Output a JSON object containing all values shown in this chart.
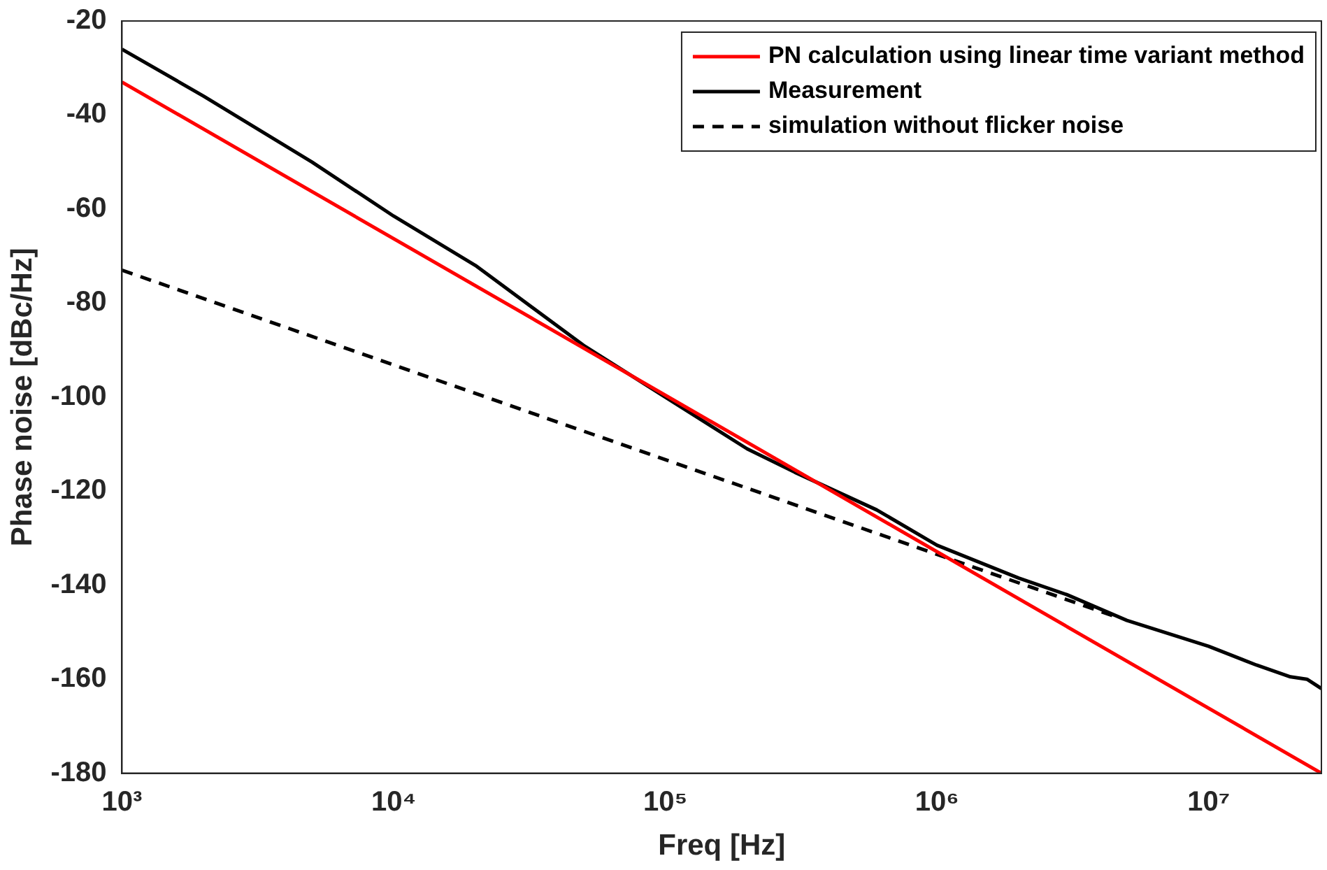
{
  "chart_data": {
    "type": "line",
    "xlabel": "Freq [Hz]",
    "ylabel": "Phase noise [dBc/Hz]",
    "log": "x",
    "xlim": [
      1000,
      26000000
    ],
    "xticks": [
      {
        "value": 1000,
        "label": "10³"
      },
      {
        "value": 10000,
        "label": "10⁴"
      },
      {
        "value": 100000,
        "label": "10⁵"
      },
      {
        "value": 1000000,
        "label": "10⁶"
      },
      {
        "value": 10000000,
        "label": "10⁷"
      }
    ],
    "ylim": [
      -180,
      -20
    ],
    "yticks": [
      -180,
      -160,
      -140,
      -120,
      -100,
      -80,
      -60,
      -40,
      -20
    ],
    "grid": false,
    "legend": "top right",
    "line_style": "solid",
    "marker": "none",
    "series": [
      {
        "name": "PN calculation using linear time variant method",
        "color": "#ff0000",
        "x": [
          1000,
          26000000
        ],
        "values": [
          -33,
          -180
        ]
      },
      {
        "name": "Measurement",
        "color": "#000000",
        "x": [
          1000,
          2000,
          5000,
          10000,
          20000,
          50000,
          100000,
          200000,
          300000,
          600000,
          1000000,
          2000000,
          3000000,
          5000000,
          10000000,
          15000000,
          20000000,
          23000000,
          26000000
        ],
        "values": [
          -26,
          -36,
          -50,
          -61.5,
          -72,
          -89,
          -100,
          -111,
          -116,
          -124,
          -131.5,
          -138.5,
          -142,
          -147.5,
          -153,
          -157,
          -159.5,
          -160,
          -162
        ]
      },
      {
        "name": "simulation without flicker noise",
        "color": "#000000",
        "line_style": "dashed",
        "x": [
          1000,
          4700000
        ],
        "values": [
          -73,
          -147
        ]
      }
    ]
  }
}
